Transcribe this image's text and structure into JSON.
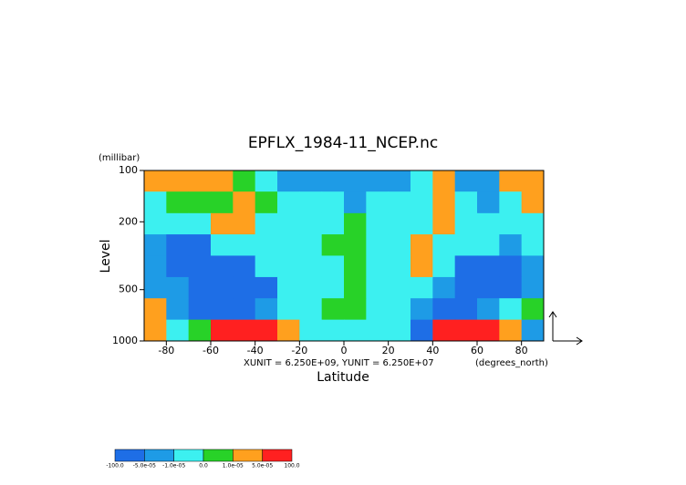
{
  "chart_data": {
    "type": "contour",
    "title": "EPFLX_1984-11_NCEP.nc",
    "x_label": "Latitude",
    "y_label": "Level",
    "x_units": "(degrees_north)",
    "y_units": "(millibar)",
    "annotation": "XUNIT = 6.250E+09, YUNIT = 6.250E+07",
    "xlim": [
      -90,
      90
    ],
    "xticks": [
      -80,
      -60,
      -40,
      -20,
      0,
      20,
      40,
      60,
      80
    ],
    "ylim": [
      1000,
      100
    ],
    "yticks": [
      100,
      200,
      500,
      1000
    ],
    "log_y": true,
    "xbins": [
      -90,
      -80,
      -70,
      -60,
      -50,
      -40,
      -30,
      -20,
      -10,
      0,
      10,
      20,
      30,
      40,
      50,
      60,
      70,
      80,
      90
    ],
    "ybins": [
      100,
      133,
      178,
      237,
      316,
      422,
      562,
      750,
      1000
    ],
    "levels": [
      {
        "value": -100,
        "label": "-100.0"
      },
      {
        "value": -5e-05,
        "label": "-5.0e-05"
      },
      {
        "value": -1e-05,
        "label": "-1.0e-05"
      },
      {
        "value": 0,
        "label": "0.0"
      },
      {
        "value": 1e-05,
        "label": "1.0e-05"
      },
      {
        "value": 5e-05,
        "label": "5.0e-05"
      },
      {
        "value": 100,
        "label": "100.0"
      }
    ],
    "colors": [
      "#1e6ee6",
      "#1e9be6",
      "#3cf0f0",
      "#28d228",
      "#ffa01e",
      "#ff2020"
    ],
    "z": [
      [
        3e-05,
        3e-05,
        3e-05,
        3e-05,
        5e-06,
        -5e-06,
        -3e-05,
        -3e-05,
        -3e-05,
        -3e-05,
        -3e-05,
        -3e-05,
        -5e-06,
        3e-05,
        -3e-05,
        -3e-05,
        3e-05,
        3e-05
      ],
      [
        -5e-06,
        5e-06,
        5e-06,
        5e-06,
        3e-05,
        5e-06,
        -5e-06,
        -5e-06,
        -5e-06,
        -3e-05,
        -5e-06,
        -5e-06,
        -5e-06,
        3e-05,
        -5e-06,
        -3e-05,
        -5e-06,
        3e-05
      ],
      [
        -5e-06,
        -5e-06,
        -5e-06,
        3e-05,
        3e-05,
        -5e-06,
        -5e-06,
        -5e-06,
        -5e-06,
        5e-06,
        -5e-06,
        -5e-06,
        -5e-06,
        3e-05,
        -5e-06,
        -5e-06,
        -5e-06,
        -5e-06
      ],
      [
        -3e-05,
        -0.0001,
        -0.0001,
        -5e-06,
        -5e-06,
        -5e-06,
        -5e-06,
        -5e-06,
        5e-06,
        5e-06,
        -5e-06,
        -5e-06,
        3e-05,
        -5e-06,
        -5e-06,
        -5e-06,
        -3e-05,
        -5e-06
      ],
      [
        -3e-05,
        -0.0001,
        -0.0001,
        -0.0001,
        -0.0001,
        -5e-06,
        -5e-06,
        -5e-06,
        -5e-06,
        5e-06,
        -5e-06,
        -5e-06,
        3e-05,
        -5e-06,
        -0.0001,
        -0.0001,
        -0.0001,
        -3e-05
      ],
      [
        -3e-05,
        -3e-05,
        -0.0001,
        -0.0001,
        -0.0001,
        -0.0001,
        -5e-06,
        -5e-06,
        -5e-06,
        5e-06,
        -5e-06,
        -5e-06,
        -5e-06,
        -3e-05,
        -0.0001,
        -0.0001,
        -0.0001,
        -3e-05
      ],
      [
        3e-05,
        -3e-05,
        -0.0001,
        -0.0001,
        -0.0001,
        -3e-05,
        -5e-06,
        -5e-06,
        5e-06,
        5e-06,
        -5e-06,
        -5e-06,
        -3e-05,
        -0.0001,
        -0.0001,
        -3e-05,
        -5e-06,
        5e-06
      ],
      [
        3e-05,
        -5e-06,
        5e-06,
        0.0001,
        0.0001,
        0.0001,
        3e-05,
        -5e-06,
        -5e-06,
        -5e-06,
        -5e-06,
        -5e-06,
        -0.0001,
        0.0001,
        0.0001,
        0.0001,
        3e-05,
        -3e-05
      ]
    ]
  }
}
